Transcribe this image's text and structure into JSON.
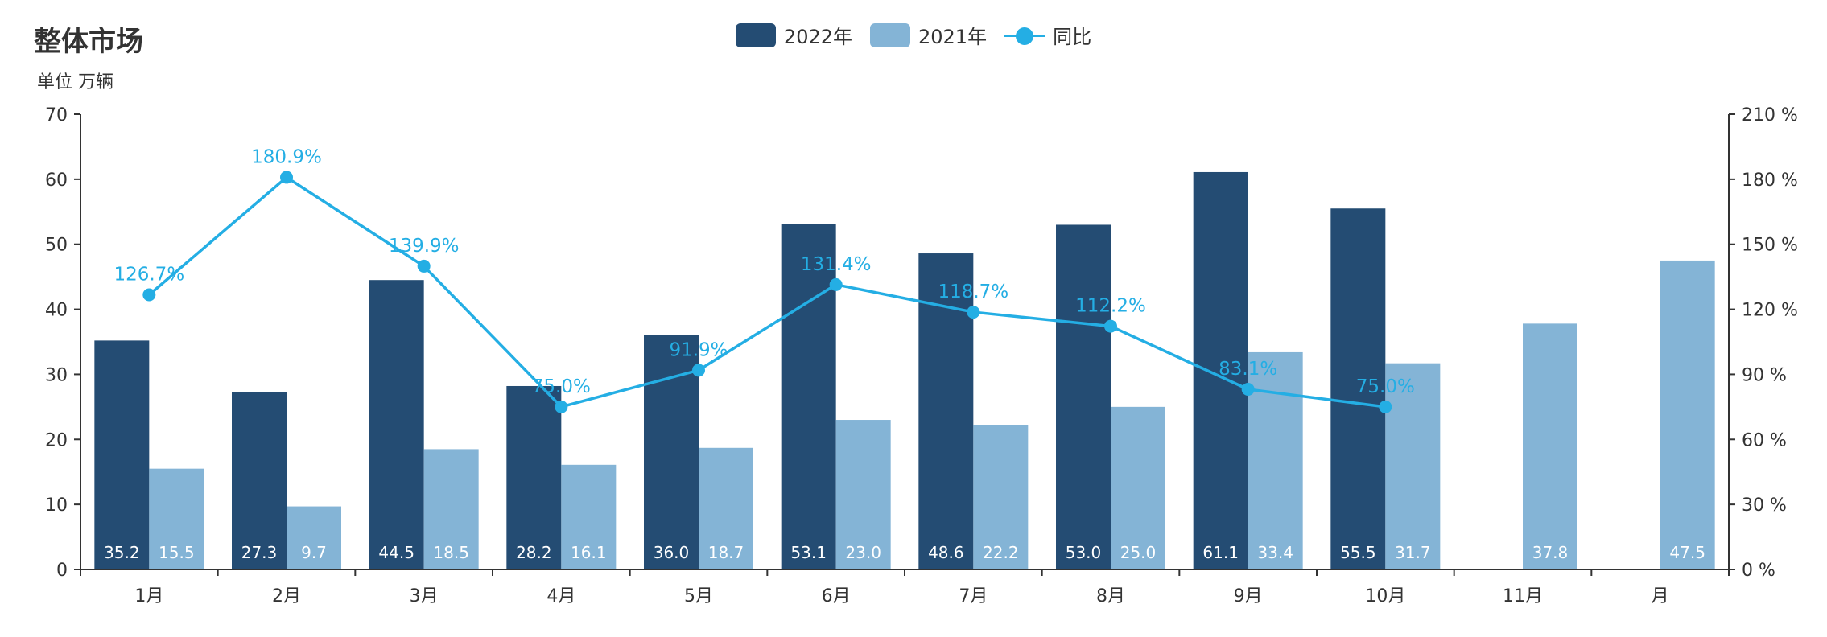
{
  "title": "整体市场",
  "unit": "单位 万辆",
  "legend": {
    "s2022": "2022年",
    "s2021": "2021年",
    "yoy": "同比"
  },
  "colors": {
    "s2022": "#244c73",
    "s2021": "#84b4d6",
    "yoy": "#24aee4",
    "axis": "#333333"
  },
  "chart_data": {
    "type": "bar",
    "categories": [
      "1月",
      "2月",
      "3月",
      "4月",
      "5月",
      "6月",
      "7月",
      "8月",
      "9月",
      "10月",
      "11月",
      "月"
    ],
    "series": [
      {
        "name": "2022年",
        "values": [
          35.2,
          27.3,
          44.5,
          28.2,
          36.0,
          53.1,
          48.6,
          53.0,
          61.1,
          55.5,
          null,
          null
        ],
        "labels": [
          "35.2",
          "27.3",
          "44.5",
          "28.2",
          "36.0",
          "53.1",
          "48.6",
          "53.0",
          "61.1",
          "55.5",
          "",
          ""
        ]
      },
      {
        "name": "2021年",
        "values": [
          15.5,
          9.7,
          18.5,
          16.1,
          18.7,
          23.0,
          22.2,
          25.0,
          33.4,
          31.7,
          37.8,
          47.5
        ],
        "labels": [
          "15.5",
          "9.7",
          "18.5",
          "16.1",
          "18.7",
          "23.0",
          "22.2",
          "25.0",
          "33.4",
          "31.7",
          "37.8",
          "47.5"
        ]
      },
      {
        "name": "同比",
        "type": "line",
        "axis": "right",
        "values": [
          126.7,
          180.9,
          139.9,
          75.0,
          91.9,
          131.4,
          118.7,
          112.2,
          83.1,
          75.0,
          null,
          null
        ],
        "labels": [
          "126.7%",
          "180.9%",
          "139.9%",
          "75.0%",
          "91.9%",
          "131.4%",
          "118.7%",
          "112.2%",
          "83.1%",
          "75.0%",
          "",
          ""
        ]
      }
    ],
    "ylim": [
      0,
      70
    ],
    "y_ticks": [
      "0",
      "10",
      "20",
      "30",
      "40",
      "50",
      "60",
      "70"
    ],
    "y2lim": [
      0,
      210
    ],
    "y2_ticks": [
      "0 %",
      "30 %",
      "60 %",
      "90 %",
      "120 %",
      "150 %",
      "180 %",
      "210 %"
    ],
    "grid": false,
    "legend_position": "top-center"
  }
}
